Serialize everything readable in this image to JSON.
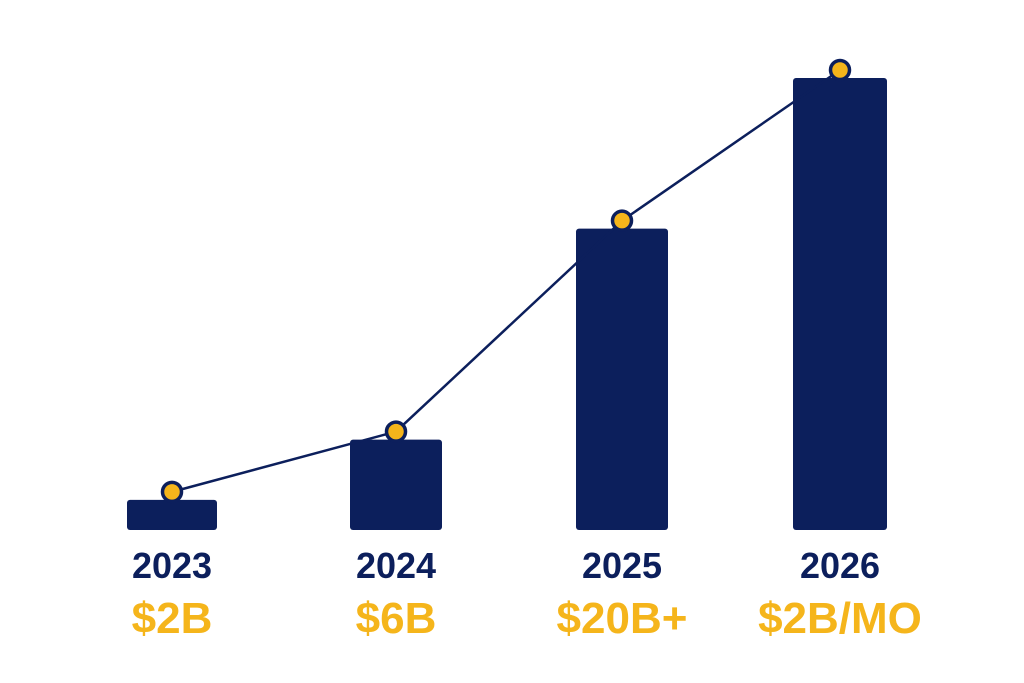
{
  "chart_data": {
    "type": "bar",
    "categories": [
      "2023",
      "2024",
      "2025",
      "2026"
    ],
    "values": [
      2,
      6,
      20,
      30
    ],
    "data_labels": [
      "$2B",
      "$6B",
      "$20B+",
      "$2B/MO"
    ],
    "title": "",
    "xlabel": "",
    "ylabel": "",
    "grid": false,
    "trend_line": true,
    "colors": {
      "bar": "#0c1f5c",
      "line": "#0c1f5c",
      "marker_fill": "#f5b51b",
      "label_year": "#0c1f5c",
      "label_value": "#f5b51b"
    }
  }
}
